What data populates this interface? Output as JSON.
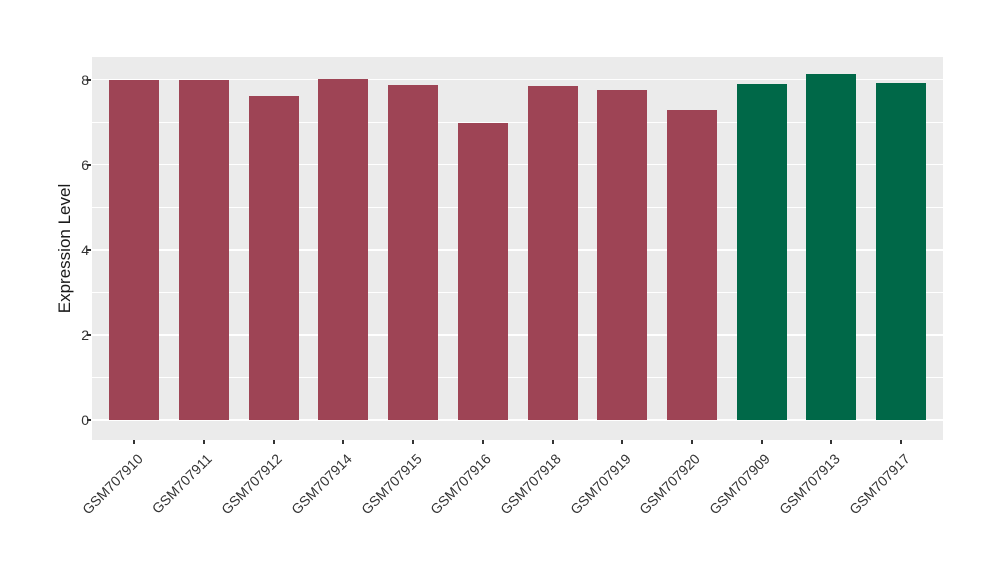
{
  "chart_data": {
    "type": "bar",
    "title": "",
    "xlabel": "",
    "ylabel": "Expression Level",
    "categories": [
      "GSM707910",
      "GSM707911",
      "GSM707912",
      "GSM707914",
      "GSM707915",
      "GSM707916",
      "GSM707918",
      "GSM707919",
      "GSM707920",
      "GSM707909",
      "GSM707913",
      "GSM707917"
    ],
    "values": [
      8.0,
      7.99,
      7.61,
      8.02,
      7.87,
      6.97,
      7.84,
      7.76,
      7.28,
      7.89,
      8.12,
      7.93
    ],
    "bar_colors": [
      "#9E4455",
      "#9E4455",
      "#9E4455",
      "#9E4455",
      "#9E4455",
      "#9E4455",
      "#9E4455",
      "#9E4455",
      "#9E4455",
      "#006848",
      "#006848",
      "#006848"
    ],
    "group_colors": {
      "maroon_group": "#9E4455",
      "green_group": "#006848"
    },
    "yticks": [
      0,
      2,
      4,
      6,
      8
    ],
    "minor_yticks": [
      1,
      3,
      5,
      7
    ],
    "ylim": [
      -0.45,
      8.55
    ],
    "grid": true,
    "legend_position": "none",
    "panel_background": "#EBEBEB",
    "gridline_color": "#FFFFFF",
    "axis_text_color": "#333333",
    "axis_title_color": "#1A1A1A",
    "x_tick_label_rotation_deg": 45
  }
}
